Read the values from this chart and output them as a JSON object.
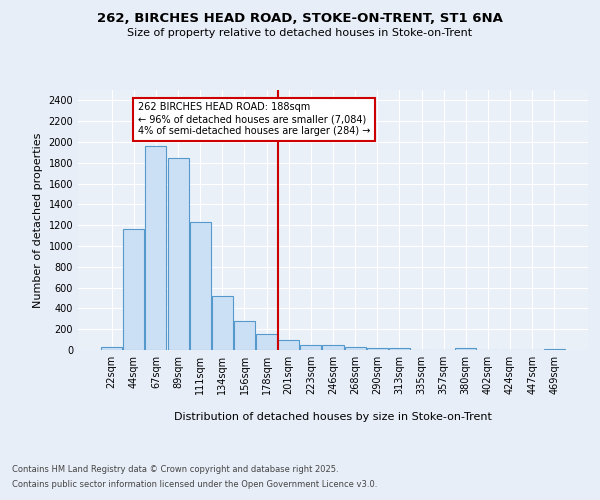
{
  "title1": "262, BIRCHES HEAD ROAD, STOKE-ON-TRENT, ST1 6NA",
  "title2": "Size of property relative to detached houses in Stoke-on-Trent",
  "xlabel": "Distribution of detached houses by size in Stoke-on-Trent",
  "ylabel": "Number of detached properties",
  "categories": [
    "22sqm",
    "44sqm",
    "67sqm",
    "89sqm",
    "111sqm",
    "134sqm",
    "156sqm",
    "178sqm",
    "201sqm",
    "223sqm",
    "246sqm",
    "268sqm",
    "290sqm",
    "313sqm",
    "335sqm",
    "357sqm",
    "380sqm",
    "402sqm",
    "424sqm",
    "447sqm",
    "469sqm"
  ],
  "values": [
    30,
    1160,
    1960,
    1850,
    1230,
    520,
    275,
    155,
    100,
    50,
    45,
    30,
    20,
    15,
    0,
    0,
    15,
    0,
    0,
    0,
    10
  ],
  "bar_color": "#cce0f5",
  "bar_edge_color": "#5599cc",
  "vline_color": "#cc0000",
  "annotation_text": "262 BIRCHES HEAD ROAD: 188sqm\n← 96% of detached houses are smaller (7,084)\n4% of semi-detached houses are larger (284) →",
  "annotation_box_color": "#ffffff",
  "annotation_box_edge": "#cc0000",
  "footer1": "Contains HM Land Registry data © Crown copyright and database right 2025.",
  "footer2": "Contains public sector information licensed under the Open Government Licence v3.0.",
  "bg_color": "#e8eef8",
  "plot_bg_color": "#eaf0f8",
  "grid_color": "#ffffff",
  "ylim": [
    0,
    2500
  ],
  "yticks": [
    0,
    200,
    400,
    600,
    800,
    1000,
    1200,
    1400,
    1600,
    1800,
    2000,
    2200,
    2400
  ],
  "vline_pos": 7.5
}
